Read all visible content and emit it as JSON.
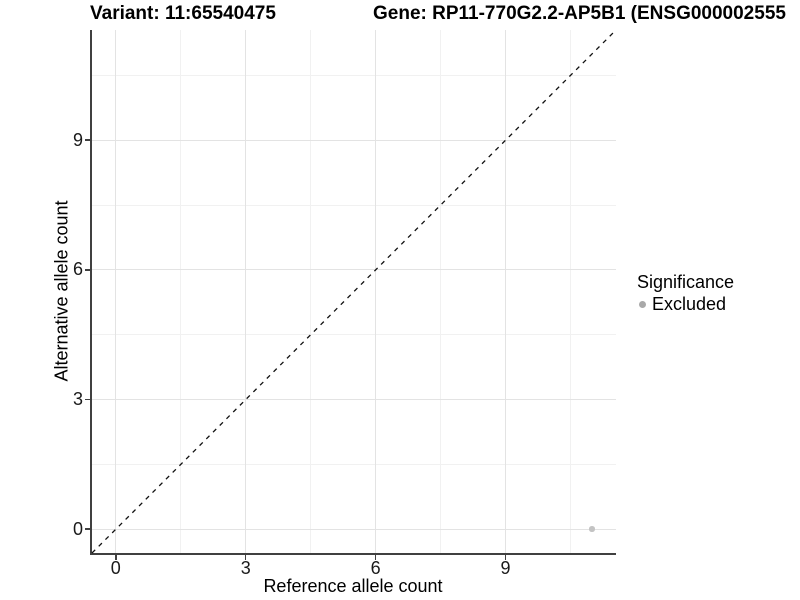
{
  "title": {
    "variant": "Variant: 11:65540475",
    "gene": "Gene: RP11-770G2.2-AP5B1 (ENSG000002555"
  },
  "chart_data": {
    "type": "scatter",
    "xlabel": "Reference allele count",
    "ylabel": "Alternative allele count",
    "xlim": [
      -0.55,
      11.55
    ],
    "ylim": [
      -0.55,
      11.55
    ],
    "x_ticks": [
      0,
      3,
      6,
      9
    ],
    "y_ticks": [
      0,
      3,
      6,
      9
    ],
    "x_minor_ticks": [
      1.5,
      4.5,
      7.5,
      10.5
    ],
    "y_minor_ticks": [
      1.5,
      4.5,
      7.5,
      10.5
    ],
    "grid": "major+minor",
    "identity_line": {
      "style": "dashed",
      "color": "#111111",
      "from": [
        -0.55,
        -0.55
      ],
      "to": [
        11.55,
        11.55
      ]
    },
    "series": [
      {
        "name": "Excluded",
        "color": "#bebebe",
        "points": [
          {
            "x": 11,
            "y": 0
          }
        ]
      }
    ],
    "legend": {
      "title": "Significance",
      "position": "right",
      "items": [
        {
          "label": "Excluded",
          "color": "#a9a9a9"
        }
      ]
    },
    "colors": {
      "axis_line": "#404040",
      "grid_major": "#e3e3e3",
      "grid_minor": "#f1f1f1",
      "point": "#c3c3c3"
    }
  }
}
